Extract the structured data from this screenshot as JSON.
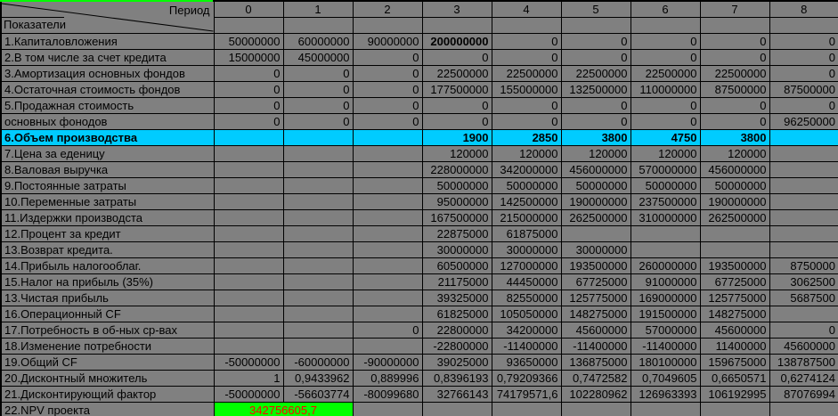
{
  "header": {
    "period_label": "Период",
    "indicators_label": "Показатели",
    "columns": [
      "0",
      "1",
      "2",
      "3",
      "4",
      "5",
      "6",
      "7",
      "8"
    ]
  },
  "rows": [
    {
      "label": "1.Капиталовложения",
      "values": [
        "50000000",
        "60000000",
        "90000000",
        "200000000",
        "0",
        "0",
        "0",
        "0",
        "0"
      ],
      "bold_cells": [
        3
      ]
    },
    {
      "label": "2.В том числе за счет кредита",
      "values": [
        "15000000",
        "45000000",
        "0",
        "0",
        "0",
        "0",
        "0",
        "0",
        "0"
      ]
    },
    {
      "label": "3.Амортизация основных фондов",
      "values": [
        "0",
        "0",
        "0",
        "22500000",
        "22500000",
        "22500000",
        "22500000",
        "22500000",
        "0"
      ]
    },
    {
      "label": "4.Остаточная стоимость фондов",
      "values": [
        "0",
        "0",
        "0",
        "177500000",
        "155000000",
        "132500000",
        "110000000",
        "87500000",
        "87500000"
      ]
    },
    {
      "label": "5.Продажная стоимость",
      "values": [
        "0",
        "0",
        "0",
        "0",
        "0",
        "0",
        "0",
        "0",
        "0"
      ]
    },
    {
      "label": " основных фонодов",
      "values": [
        "0",
        "0",
        "0",
        "0",
        "0",
        "0",
        "0",
        "0",
        "96250000"
      ],
      "divider_top": "white"
    },
    {
      "label": "6.Объем производства",
      "values": [
        "",
        "",
        "",
        "1900",
        "2850",
        "3800",
        "4750",
        "3800",
        ""
      ],
      "highlight": "cyan",
      "bold": true
    },
    {
      "label": "7.Цена за еденицу",
      "values": [
        "",
        "",
        "",
        "120000",
        "120000",
        "120000",
        "120000",
        "120000",
        ""
      ]
    },
    {
      "label": "8.Валовая выручка",
      "values": [
        "",
        "",
        "",
        "228000000",
        "342000000",
        "456000000",
        "570000000",
        "456000000",
        ""
      ]
    },
    {
      "label": "9.Постоянные затраты",
      "values": [
        "",
        "",
        "",
        "50000000",
        "50000000",
        "50000000",
        "50000000",
        "50000000",
        ""
      ]
    },
    {
      "label": "10.Переменные затраты",
      "values": [
        "",
        "",
        "",
        "95000000",
        "142500000",
        "190000000",
        "237500000",
        "190000000",
        ""
      ]
    },
    {
      "label": "11.Издержки производста",
      "values": [
        "",
        "",
        "",
        "167500000",
        "215000000",
        "262500000",
        "310000000",
        "262500000",
        ""
      ]
    },
    {
      "label": "12.Процент за кредит",
      "values": [
        "",
        "",
        "",
        "22875000",
        "61875000",
        "",
        "",
        "",
        ""
      ]
    },
    {
      "label": "13.Возврат кредита.",
      "values": [
        "",
        "",
        "",
        "30000000",
        "30000000",
        "30000000",
        "",
        "",
        ""
      ]
    },
    {
      "label": "14.Прибыль налогооблаг.",
      "values": [
        "",
        "",
        "",
        "60500000",
        "127000000",
        "193500000",
        "260000000",
        "193500000",
        "8750000"
      ]
    },
    {
      "label": "15.Налог на прибыль (35%)",
      "values": [
        "",
        "",
        "",
        "21175000",
        "44450000",
        "67725000",
        "91000000",
        "67725000",
        "3062500"
      ]
    },
    {
      "label": "13.Чистая прибыль",
      "values": [
        "",
        "",
        "",
        "39325000",
        "82550000",
        "125775000",
        "169000000",
        "125775000",
        "5687500"
      ]
    },
    {
      "label": "16.Операционный CF",
      "values": [
        "",
        "",
        "",
        "61825000",
        "105050000",
        "148275000",
        "191500000",
        "148275000",
        ""
      ]
    },
    {
      "label": "17.Потребность в об-ных ср-вах",
      "values": [
        "",
        "",
        "0",
        "22800000",
        "34200000",
        "45600000",
        "57000000",
        "45600000",
        "0"
      ]
    },
    {
      "label": "18.Изменение потребности",
      "values": [
        "",
        "",
        "",
        "-22800000",
        "-11400000",
        "-11400000",
        "-11400000",
        "11400000",
        "45600000"
      ]
    },
    {
      "label": "19.Общий CF",
      "values": [
        "-50000000",
        "-60000000",
        "-90000000",
        "39025000",
        "93650000",
        "136875000",
        "180100000",
        "159675000",
        "138787500"
      ]
    },
    {
      "label": "20.Дисконтный множитель",
      "values": [
        "1",
        "0,9433962",
        "0,889996",
        "0,8396193",
        "0,79209366",
        "0,7472582",
        "0,7049605",
        "0,6650571",
        "0,6274124"
      ]
    },
    {
      "label": "21.Дисконтирующий фактор",
      "values": [
        "-50000000",
        "-56603774",
        "-80099680",
        "32766143",
        "74179571,6",
        "102280962",
        "126963393",
        "106192995",
        "87076994"
      ]
    },
    {
      "label": "22.NPV проекта",
      "npv_value": "342756605,7",
      "npv_colspan": 2,
      "empty_cells": 7
    }
  ],
  "colors": {
    "background": "#808080",
    "grid_line": "#000000",
    "cyan_row": "#00CCFF",
    "npv_cell_bg": "#00FF00",
    "npv_cell_text": "#FF0000",
    "accent_green": "#00FF00",
    "white_divider": "#FFFFFF"
  }
}
